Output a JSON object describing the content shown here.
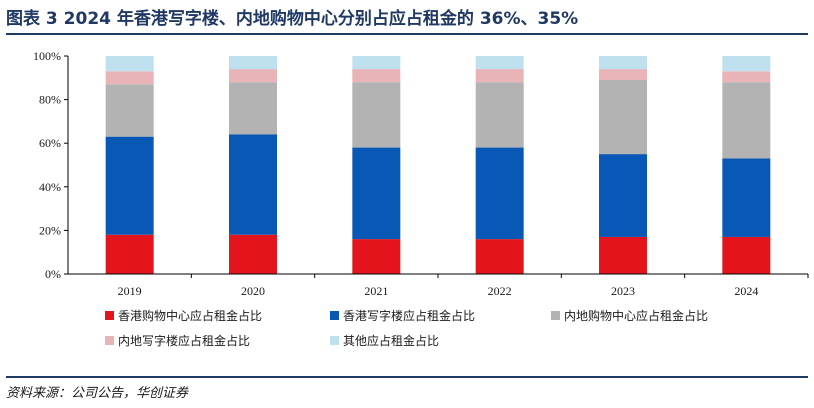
{
  "header": {
    "title": "图表 3   2024 年香港写字楼、内地购物中心分别占应占租金的 36%、35%"
  },
  "footer": {
    "source": "资料来源：公司公告，华创证券"
  },
  "colors": {
    "title": "#1f3864",
    "rule": "#1f3864",
    "axis": "#000000"
  },
  "chart_data": {
    "type": "bar",
    "stacked": true,
    "categories": [
      "2019",
      "2020",
      "2021",
      "2022",
      "2023",
      "2024"
    ],
    "y_tick_labels": [
      "0%",
      "20%",
      "40%",
      "60%",
      "80%",
      "100%"
    ],
    "ylim": [
      0,
      100
    ],
    "grid": false,
    "legend_position": "bottom",
    "series": [
      {
        "name": "香港购物中心应占租金占比",
        "color": "#e3141c",
        "values": [
          18,
          18,
          16,
          16,
          17,
          17
        ]
      },
      {
        "name": "香港写字楼应占租金占比",
        "color": "#0a58b6",
        "values": [
          45,
          46,
          42,
          42,
          38,
          36
        ]
      },
      {
        "name": "内地购物中心应占租金占比",
        "color": "#b3b3b3",
        "values": [
          24,
          24,
          30,
          30,
          34,
          35
        ]
      },
      {
        "name": "内地写字楼应占租金占比",
        "color": "#e8b4b8",
        "values": [
          6,
          6,
          6,
          6,
          5,
          5
        ]
      },
      {
        "name": "其他应占租金占比",
        "color": "#bfe0ee",
        "values": [
          7,
          6,
          6,
          6,
          6,
          7
        ]
      }
    ]
  }
}
